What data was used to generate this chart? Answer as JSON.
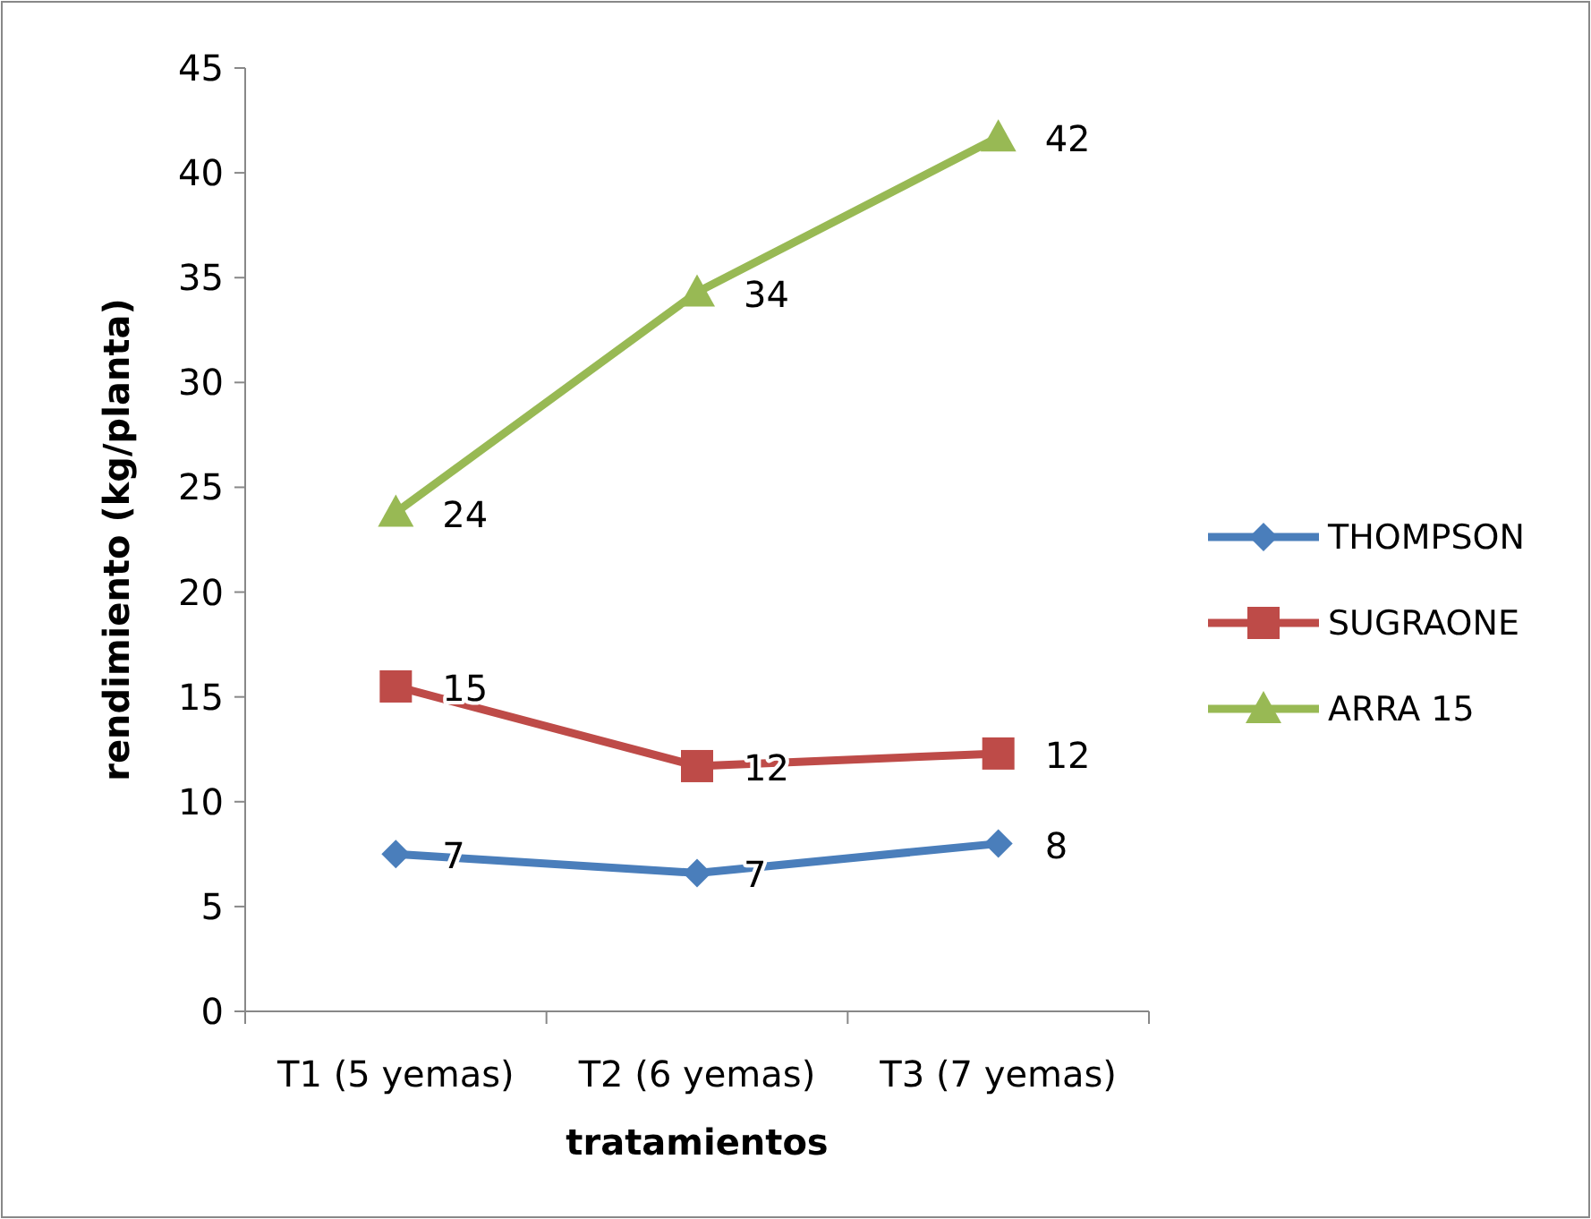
{
  "chart_data": {
    "type": "line",
    "xlabel": "tratamientos",
    "ylabel": "rendimiento (kg/planta)",
    "categories": [
      "T1 (5 yemas)",
      "T2 (6 yemas)",
      "T3 (7 yemas)"
    ],
    "ylim": [
      0,
      45
    ],
    "yticks": [
      0,
      5,
      10,
      15,
      20,
      25,
      30,
      35,
      40,
      45
    ],
    "grid": false,
    "legend": "right",
    "series": [
      {
        "name": "THOMPSON",
        "color": "#4a7ebb",
        "marker": "diamond",
        "values": [
          7.5,
          6.6,
          8.0
        ],
        "value_labels": [
          "7",
          "7",
          "8"
        ]
      },
      {
        "name": "SUGRAONE",
        "color": "#be4b48",
        "marker": "square",
        "values": [
          15.5,
          11.7,
          12.3
        ],
        "value_labels": [
          "15",
          "12",
          "12"
        ]
      },
      {
        "name": "ARRA 15",
        "color": "#98b954",
        "marker": "triangle",
        "values": [
          23.8,
          34.3,
          41.7
        ],
        "value_labels": [
          "24",
          "34",
          "42"
        ]
      }
    ]
  }
}
